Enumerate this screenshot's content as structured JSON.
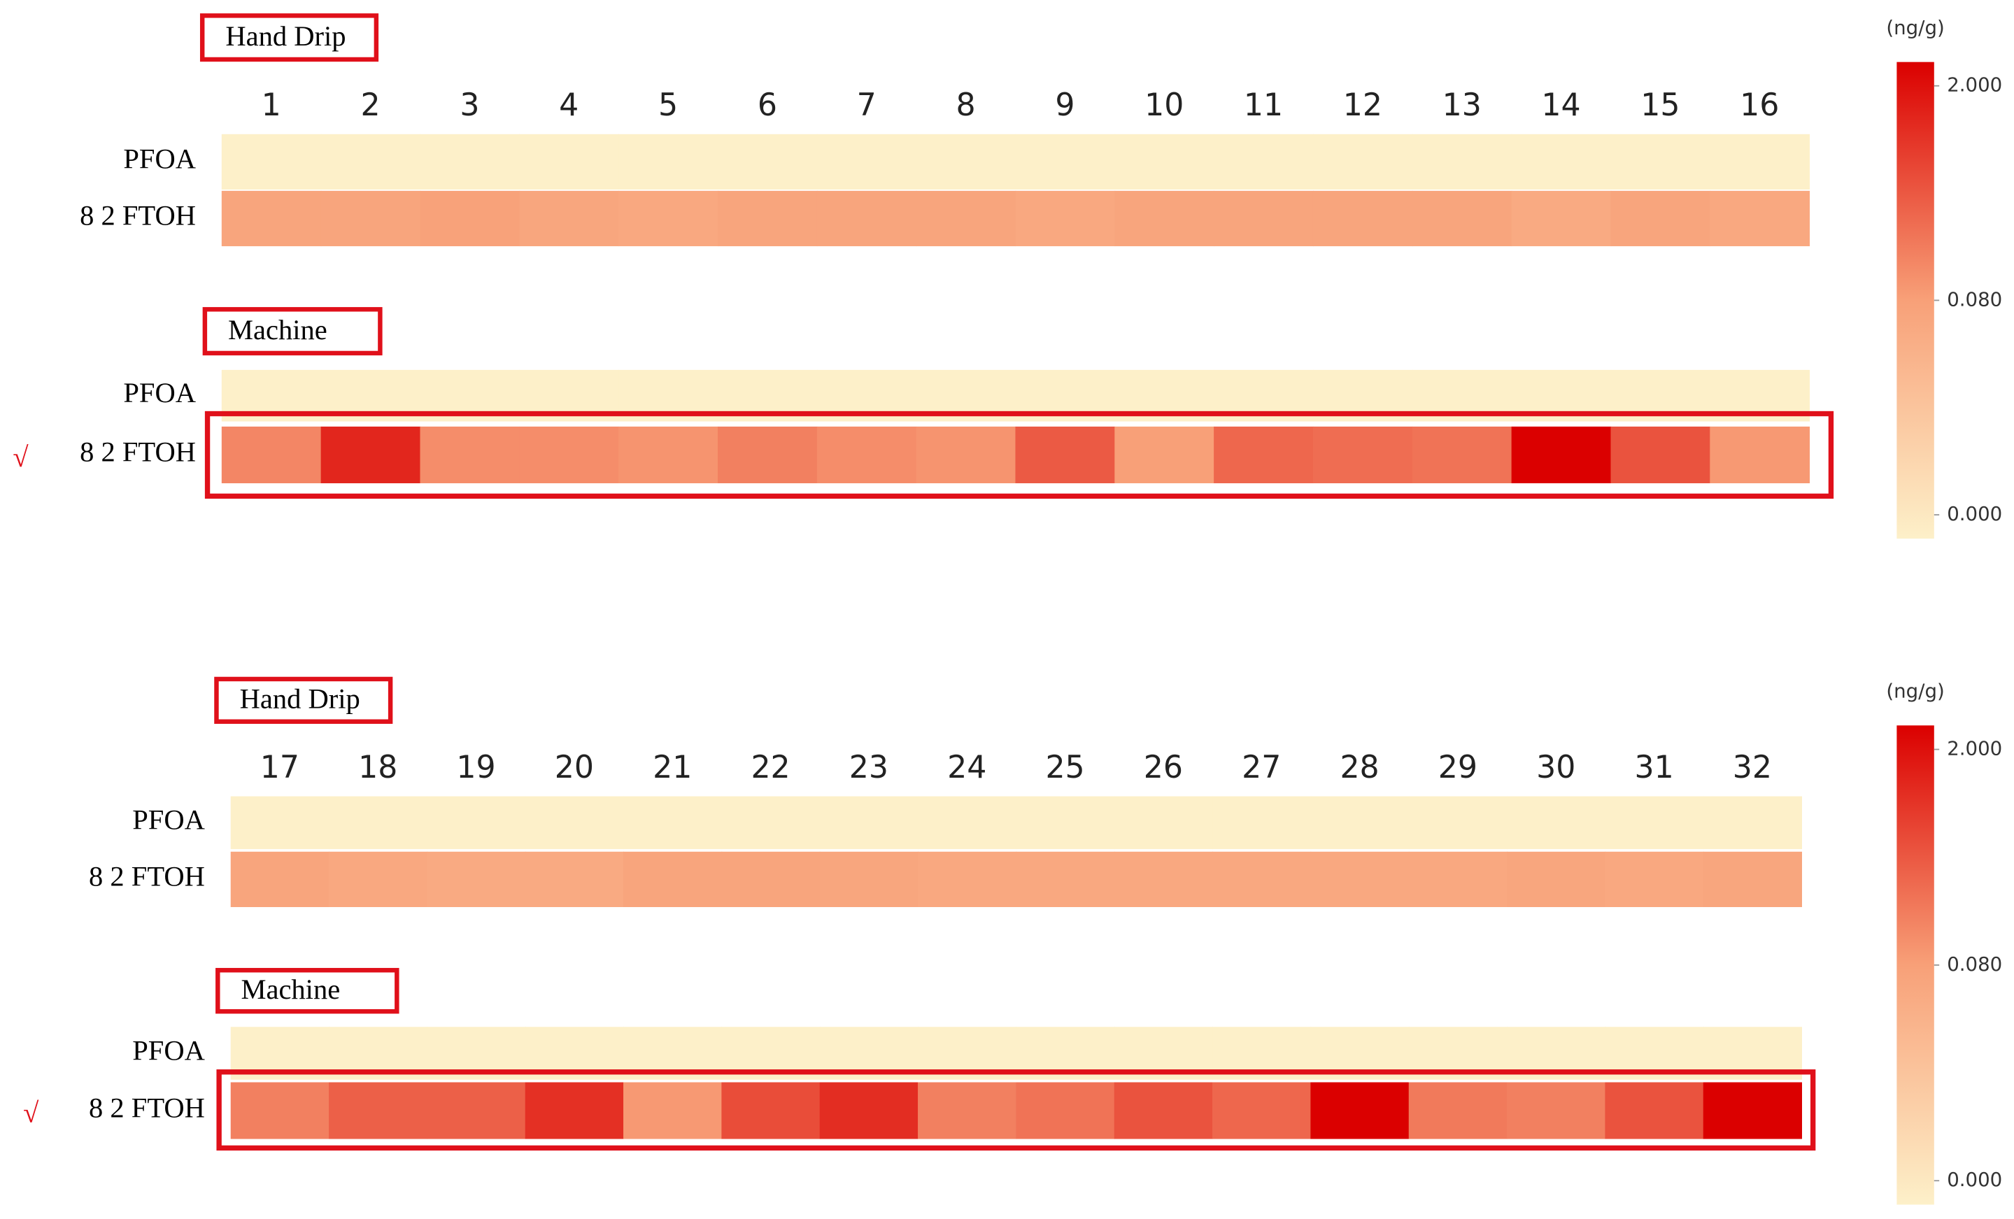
{
  "chart_data": [
    {
      "type": "heatmap",
      "columns": [
        "1",
        "2",
        "3",
        "4",
        "5",
        "6",
        "7",
        "8",
        "9",
        "10",
        "11",
        "12",
        "13",
        "14",
        "15",
        "16"
      ],
      "groups": [
        {
          "title": "Hand Drip",
          "rows": [
            "PFOA",
            "8 2 FTOH"
          ],
          "values": [
            [
              0,
              0,
              0,
              0,
              0,
              0,
              0,
              0,
              0,
              0,
              0,
              0,
              0,
              0,
              0,
              0
            ],
            [
              0.075,
              0.075,
              0.078,
              0.074,
              0.072,
              0.075,
              0.075,
              0.075,
              0.072,
              0.075,
              0.075,
              0.075,
              0.075,
              0.07,
              0.075,
              0.072
            ]
          ]
        },
        {
          "title": "Machine",
          "rows": [
            "PFOA",
            "8 2 FTOH"
          ],
          "values": [
            [
              0,
              0,
              0,
              0,
              0,
              0,
              0,
              0,
              0,
              0,
              0,
              0,
              0,
              0,
              0,
              0
            ],
            [
              0.39,
              1.54,
              0.31,
              0.31,
              0.23,
              0.46,
              0.31,
              0.23,
              0.92,
              0.08,
              0.77,
              0.69,
              0.62,
              2.0,
              1.0,
              0.16
            ]
          ],
          "highlight_row": 1,
          "annotation": "√"
        }
      ],
      "colorbar_label": "(ng/g)",
      "cticks": [
        {
          "value": 0,
          "label": "0.000"
        },
        {
          "value": 0.08,
          "label": "0.080"
        },
        {
          "value": 2,
          "label": "2.000"
        }
      ],
      "colors": [
        "#fdf0c9",
        "#f8a078",
        "#db0000"
      ]
    },
    {
      "type": "heatmap",
      "columns": [
        "17",
        "18",
        "19",
        "20",
        "21",
        "22",
        "23",
        "24",
        "25",
        "26",
        "27",
        "28",
        "29",
        "30",
        "31",
        "32"
      ],
      "groups": [
        {
          "title": "Hand Drip",
          "rows": [
            "PFOA",
            "8 2 FTOH"
          ],
          "values": [
            [
              0,
              0,
              0,
              0,
              0,
              0,
              0,
              0,
              0,
              0,
              0,
              0,
              0,
              0,
              0,
              0
            ],
            [
              0.075,
              0.072,
              0.07,
              0.07,
              0.075,
              0.075,
              0.074,
              0.072,
              0.072,
              0.072,
              0.072,
              0.072,
              0.072,
              0.074,
              0.072,
              0.074
            ]
          ]
        },
        {
          "title": "Machine",
          "rows": [
            "PFOA",
            "8 2 FTOH"
          ],
          "values": [
            [
              0,
              0,
              0,
              0,
              0,
              0,
              0,
              0,
              0,
              0,
              0,
              0,
              0,
              0,
              0,
              0
            ],
            [
              0.46,
              0.85,
              0.85,
              1.42,
              0.16,
              1.08,
              1.46,
              0.46,
              0.62,
              1.0,
              0.77,
              2.0,
              0.54,
              0.46,
              1.0,
              2.0
            ]
          ],
          "highlight_row": 1,
          "annotation": "√"
        }
      ],
      "colorbar_label": "(ng/g)",
      "cticks": [
        {
          "value": 0,
          "label": "0.000"
        },
        {
          "value": 0.08,
          "label": "0.080"
        },
        {
          "value": 2,
          "label": "2.000"
        }
      ],
      "colors": [
        "#fdf0c9",
        "#f8a078",
        "#db0000"
      ]
    }
  ]
}
